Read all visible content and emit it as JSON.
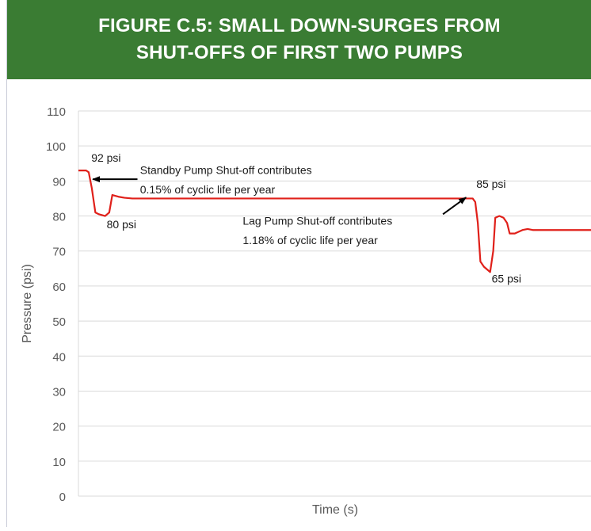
{
  "header": {
    "title_line1": "FIGURE C.5: SMALL DOWN-SURGES FROM",
    "title_line2": "SHUT-OFFS OF FIRST TWO PUMPS"
  },
  "colors": {
    "banner": "#3a7c33",
    "line": "#e0201a",
    "grid": "#d9d9d9",
    "axis_text": "#595959"
  },
  "chart_data": {
    "type": "line",
    "title": "FIGURE C.5: SMALL DOWN-SURGES FROM SHUT-OFFS OF FIRST TWO PUMPS",
    "xlabel": "Time (s)",
    "ylabel": "Pressure (psi)",
    "ylim": [
      0,
      110
    ],
    "yticks": [
      0,
      10,
      20,
      30,
      40,
      50,
      60,
      70,
      80,
      90,
      100,
      110
    ],
    "xlim": [
      0,
      100
    ],
    "grid": true,
    "series": [
      {
        "x": [
          0,
          1.5,
          2.0,
          2.6,
          3.3,
          4.0,
          5.2,
          6.0,
          6.6,
          7.8,
          9.0,
          10.5,
          12,
          20,
          30,
          40,
          50,
          60,
          70,
          75,
          76.8,
          77.3,
          77.8,
          78.3,
          79.0,
          80.2,
          80.8,
          81.2,
          82.0,
          82.8,
          83.5,
          84.0,
          85.0,
          86.5,
          87.5,
          88.5,
          90,
          93,
          100
        ],
        "y": [
          93,
          93,
          92.5,
          88,
          81,
          80.5,
          80,
          81,
          86,
          85.5,
          85.2,
          85,
          85,
          85,
          85,
          85,
          85,
          85,
          85,
          85,
          85,
          84,
          78,
          67,
          65.5,
          64,
          70,
          79.5,
          80,
          79.5,
          78,
          75,
          75,
          76,
          76.3,
          76,
          76,
          76,
          76
        ]
      }
    ],
    "annotations": [
      {
        "label": "92 psi",
        "x": 2.5,
        "y": 95.5
      },
      {
        "label": "80 psi",
        "x": 5.5,
        "y": 76.5
      },
      {
        "label": "85 psi",
        "x": 77.5,
        "y": 88
      },
      {
        "label": "65 psi",
        "x": 80.5,
        "y": 61
      },
      {
        "label": "Standby Pump Shut-off contributes",
        "x": 12,
        "y": 92
      },
      {
        "label": "0.15% of cyclic life per year",
        "x": 12,
        "y": 86.5
      },
      {
        "label": "Lag Pump Shut-off contributes",
        "x": 32,
        "y": 77.5
      },
      {
        "label": "1.18% of cyclic life per year",
        "x": 32,
        "y": 72
      }
    ],
    "arrows": [
      {
        "from": [
          11.5,
          90.5
        ],
        "to": [
          2.8,
          90.5
        ]
      },
      {
        "from": [
          71,
          80.5
        ],
        "to": [
          75.5,
          85.3
        ]
      }
    ]
  }
}
